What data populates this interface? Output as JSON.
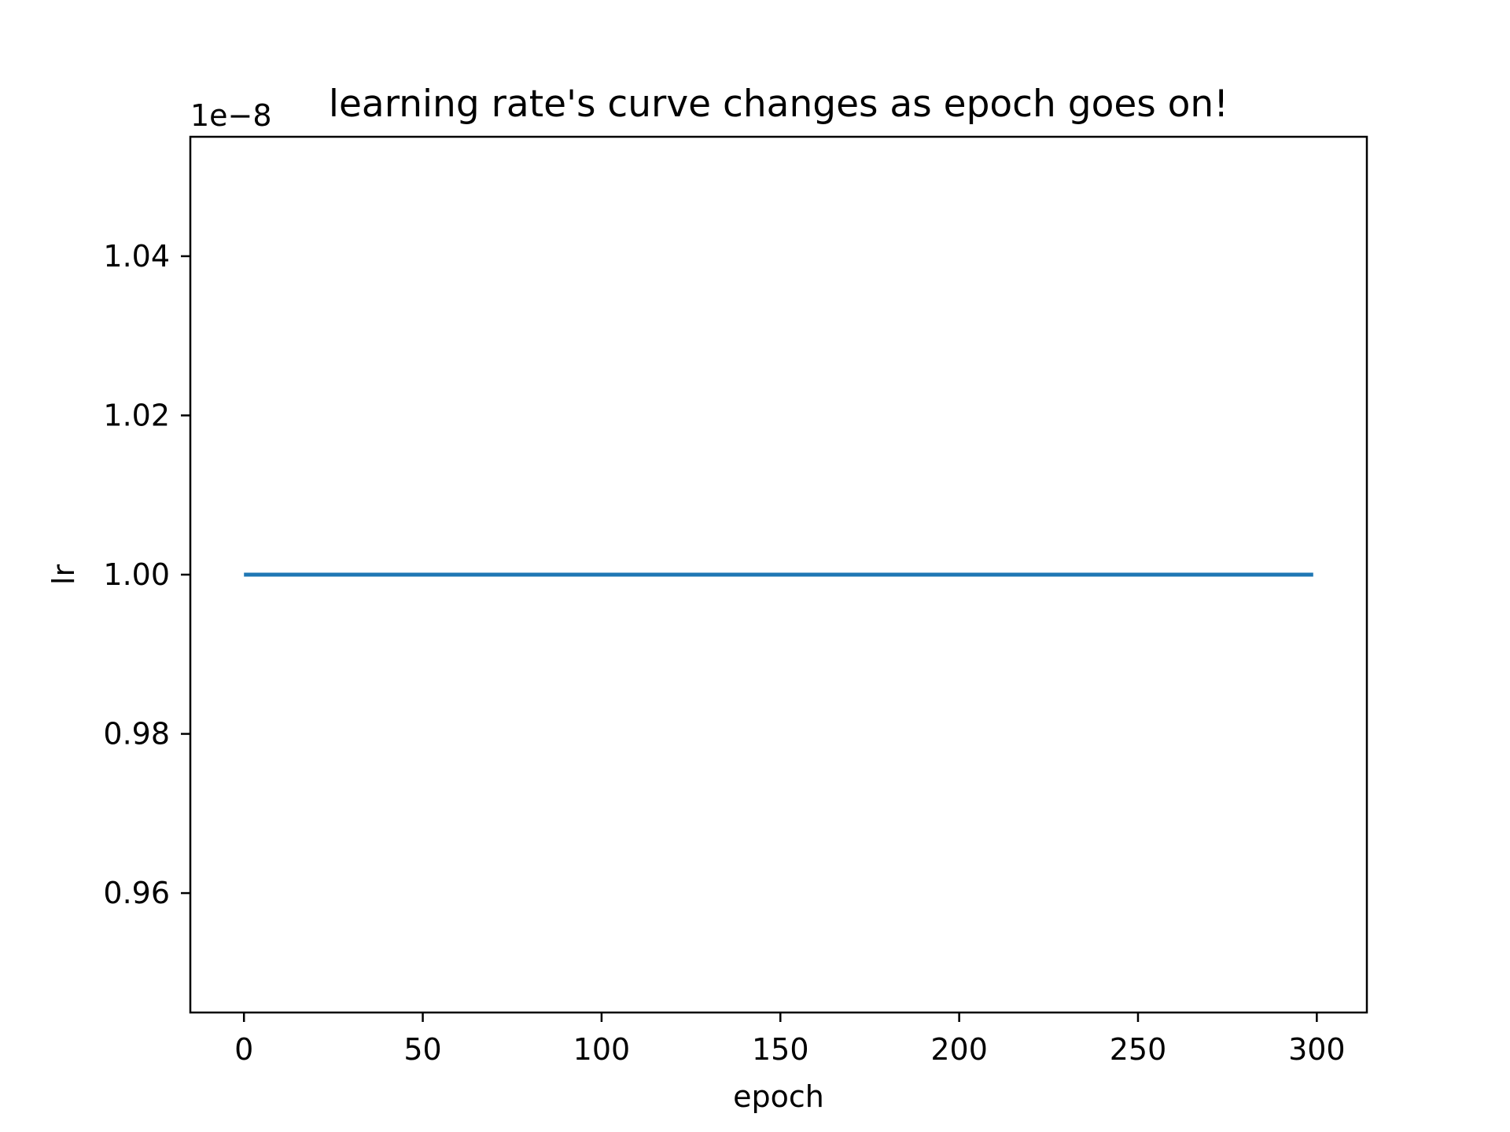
{
  "chart_data": {
    "type": "line",
    "title": "learning rate's curve changes as epoch goes on!",
    "xlabel": "epoch",
    "ylabel": "lr",
    "y_offset_label": "1e−8",
    "xlim": [
      -15,
      314
    ],
    "ylim": [
      0.945,
      1.055
    ],
    "xticks": [
      0,
      50,
      100,
      150,
      200,
      250,
      300
    ],
    "xtick_labels": [
      "0",
      "50",
      "100",
      "150",
      "200",
      "250",
      "300"
    ],
    "yticks": [
      0.96,
      0.98,
      1.0,
      1.02,
      1.04
    ],
    "ytick_labels": [
      "0.96",
      "0.98",
      "1.00",
      "1.02",
      "1.04"
    ],
    "grid": false,
    "legend": "none",
    "series": [
      {
        "color": "#1f77b4",
        "x": [
          0,
          299
        ],
        "y": [
          1.0,
          1.0
        ]
      }
    ]
  }
}
